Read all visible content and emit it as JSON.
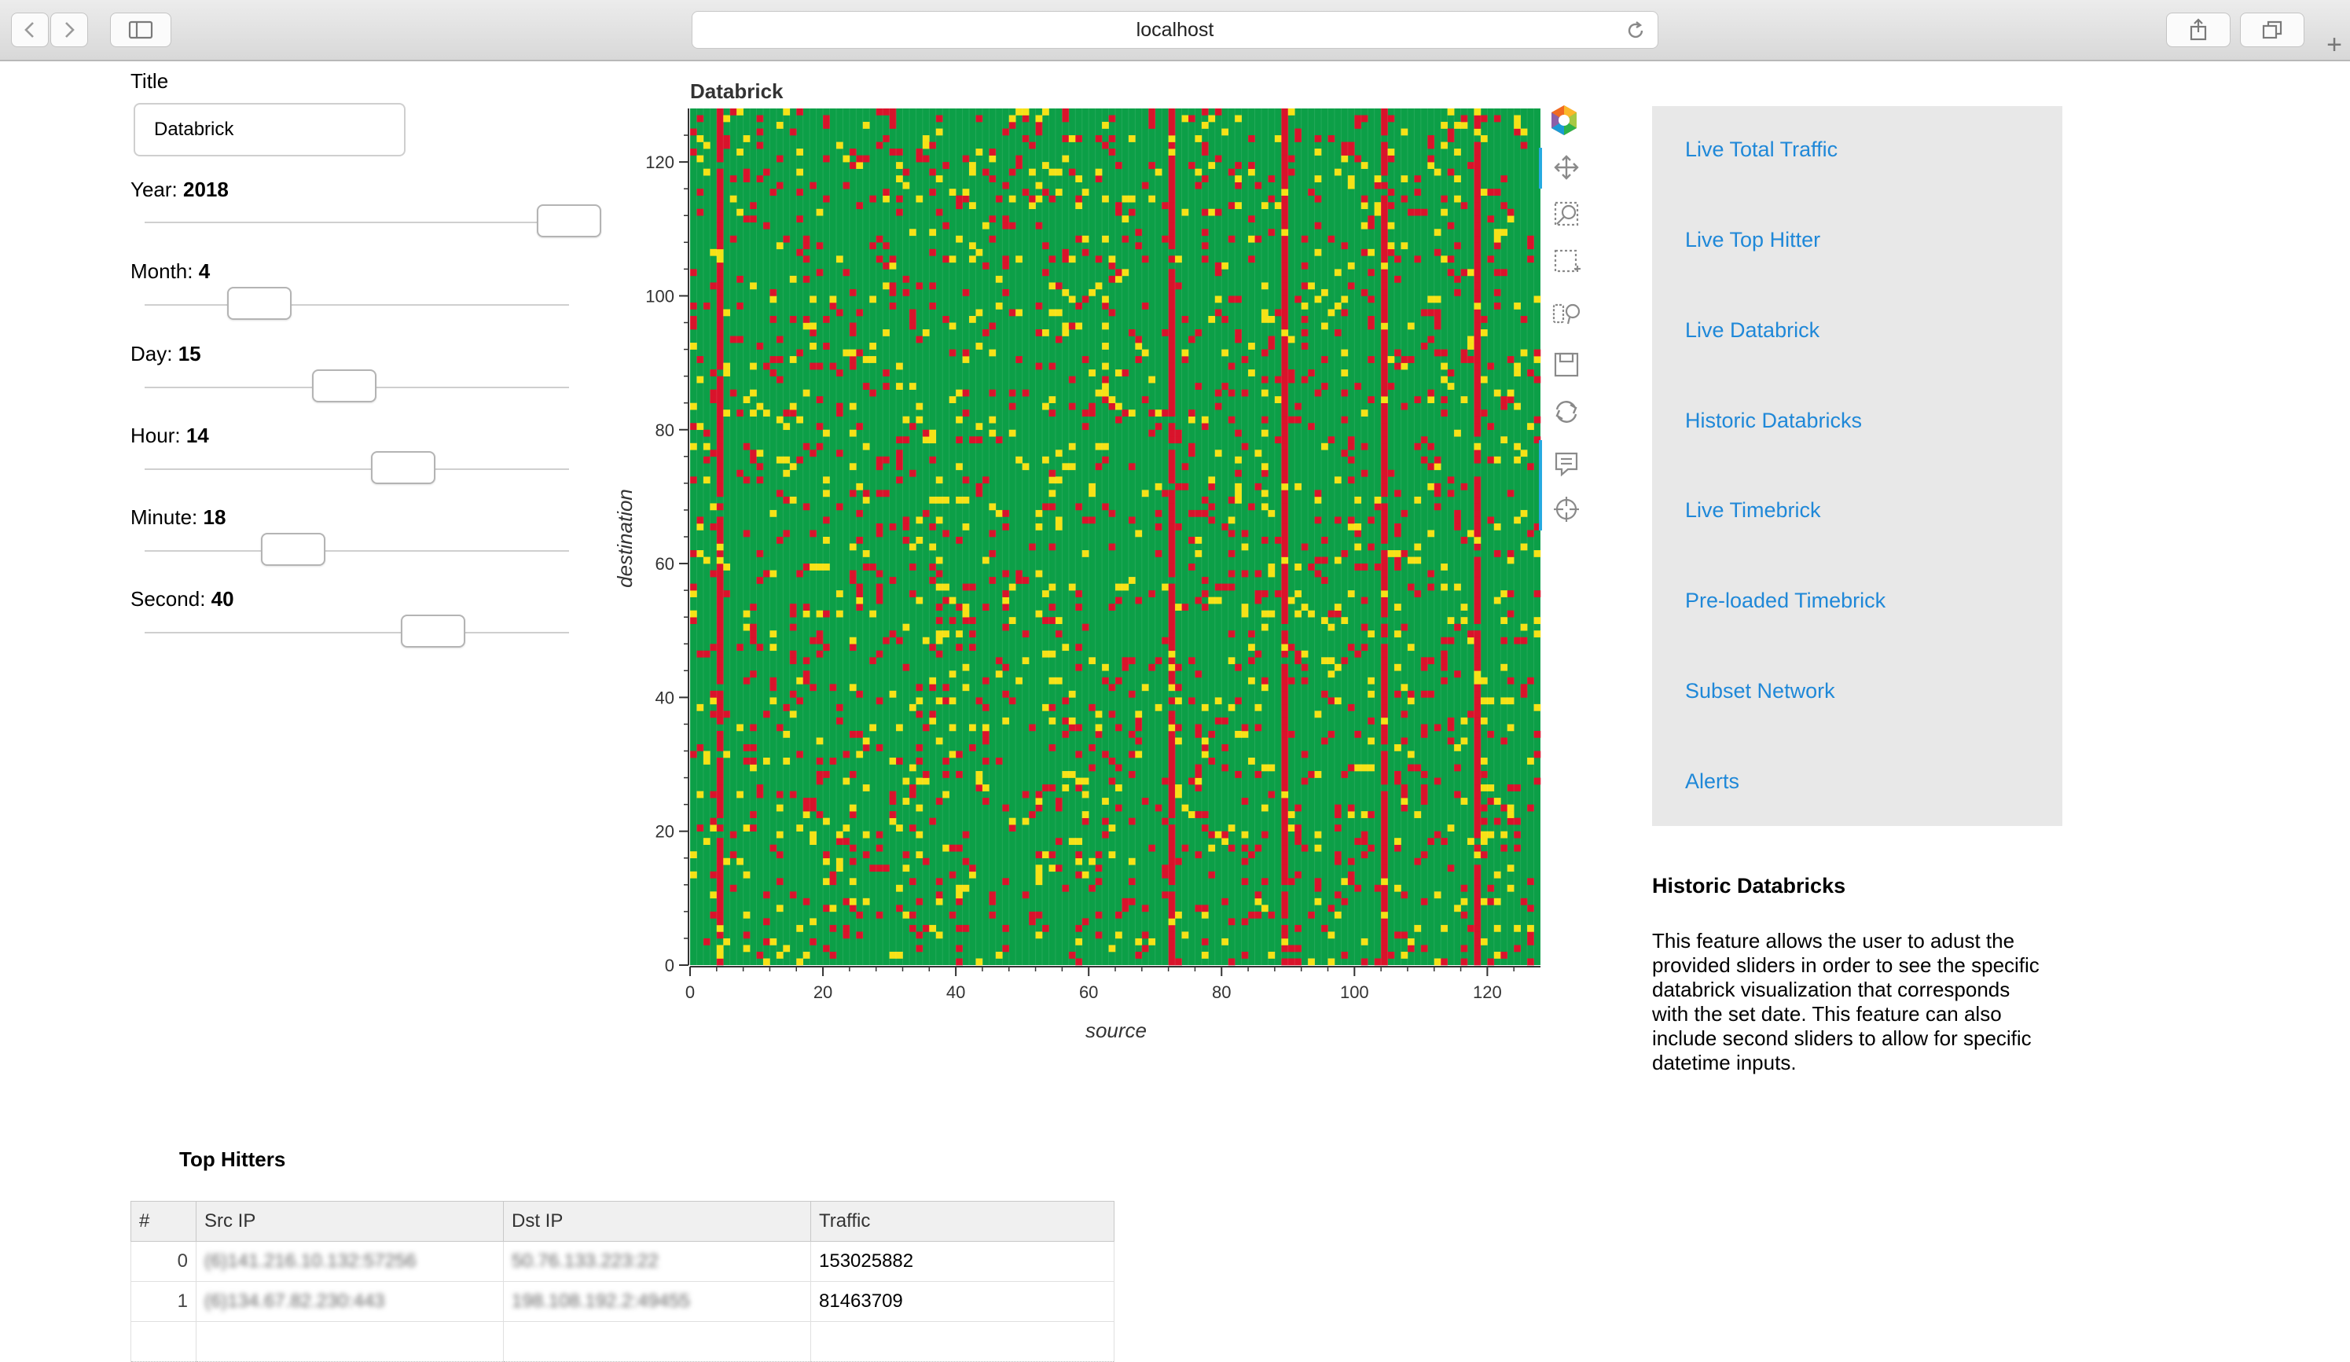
{
  "browser": {
    "url": "localhost",
    "icons": [
      "back-icon",
      "forward-icon",
      "sidebar-icon",
      "reload-icon",
      "share-icon",
      "tabs-icon",
      "new-tab-icon"
    ]
  },
  "controls": {
    "title_label": "Title",
    "title_value": "Databrick",
    "sliders": [
      {
        "label": "Year",
        "value": "2018",
        "fraction": 1.0
      },
      {
        "label": "Month",
        "value": "4",
        "fraction": 0.27
      },
      {
        "label": "Day",
        "value": "15",
        "fraction": 0.47
      },
      {
        "label": "Hour",
        "value": "14",
        "fraction": 0.61
      },
      {
        "label": "Minute",
        "value": "18",
        "fraction": 0.35
      },
      {
        "label": "Second",
        "value": "40",
        "fraction": 0.68
      }
    ]
  },
  "chart_data": {
    "type": "heatmap",
    "title": "Databrick",
    "xlabel": "source",
    "ylabel": "destination",
    "xlim": [
      0,
      127
    ],
    "ylim": [
      0,
      127
    ],
    "xticks": [
      0,
      20,
      40,
      60,
      80,
      100,
      120
    ],
    "yticks": [
      0,
      20,
      40,
      60,
      80,
      100,
      120
    ],
    "grid": [
      128,
      128
    ],
    "colors": {
      "low": "#0c9f47",
      "mid": "#f6e216",
      "high": "#d9132b"
    },
    "hot_source_columns": [
      4,
      72,
      89,
      104,
      118
    ],
    "toolbar_icons": [
      "bokeh-logo-icon",
      "pan-icon",
      "zoom-icon",
      "box-select-icon",
      "lasso-icon",
      "save-icon",
      "reset-icon",
      "hover-icon",
      "crosshair-icon"
    ]
  },
  "nav": {
    "items": [
      "Live Total Traffic",
      "Live Top Hitter",
      "Live Databrick",
      "Historic Databricks",
      "Live Timebrick",
      "Pre-loaded Timebrick",
      "Subset Network",
      "Alerts"
    ]
  },
  "description": {
    "title": "Historic Databricks",
    "lines": [
      "This feature allows the user to adust the",
      "provided sliders in order to see the specific",
      "databrick visualization that corresponds",
      "with the set date. This feature can also",
      "include second sliders to allow for specific",
      "datetime inputs."
    ]
  },
  "table": {
    "title": "Top Hitters",
    "columns": [
      "#",
      "Src IP",
      "Dst IP",
      "Traffic"
    ],
    "rows": [
      {
        "index": "0",
        "src": "(6)141.216.10.132:57256",
        "dst": "50.76.133.223:22",
        "traffic": "153025882"
      },
      {
        "index": "1",
        "src": "(6)134.67.82.230:443",
        "dst": "198.108.192.2:49455",
        "traffic": "81463709"
      }
    ]
  }
}
